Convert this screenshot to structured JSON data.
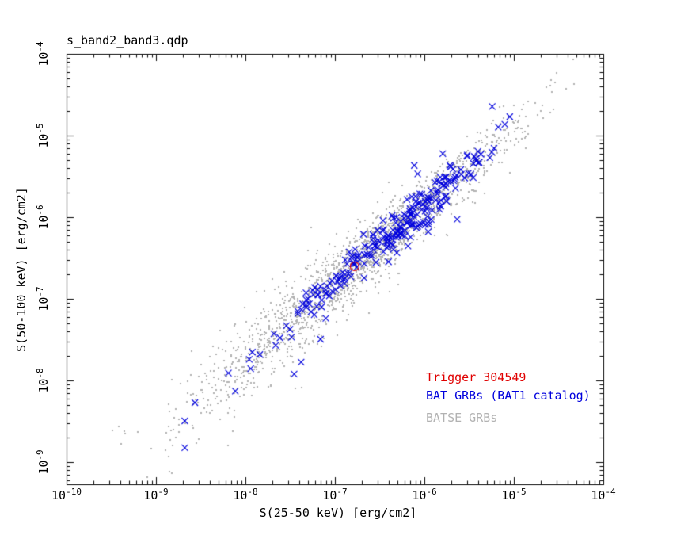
{
  "page": {
    "background": "#ffffff"
  },
  "plot": {
    "title": "s_band2_band3.qdp",
    "x_axis": {
      "label": "S(25-50 keV) [erg/cm2]",
      "scale": "log",
      "tick_base": "10",
      "tick_exponents": [
        -10,
        -9,
        -8,
        -7,
        -6,
        -5,
        -4
      ]
    },
    "y_axis": {
      "label": "S(50-100 keV) [erg/cm2]",
      "scale": "log",
      "tick_base": "10",
      "tick_exponents": [
        -4,
        -5,
        -6,
        -7,
        -8,
        -9
      ]
    },
    "legend": [
      {
        "label": "Trigger 304549",
        "color": "#e00000"
      },
      {
        "label": "BAT GRBs (BAT1 catalog)",
        "color": "#0000dd"
      },
      {
        "label": "BATSE GRBs",
        "color": "#b2b2b2"
      }
    ]
  },
  "chart_data": {
    "type": "scatter",
    "title": "s_band2_band3.qdp",
    "xlabel": "S(25-50 keV) [erg/cm2]",
    "ylabel": "S(50-100 keV) [erg/cm2]",
    "xscale": "log",
    "yscale": "log",
    "xlim": [
      1e-10,
      0.0001
    ],
    "ylim": [
      5.3e-10,
      0.0001
    ],
    "grid": false,
    "legend_position": "lower-right",
    "series": [
      {
        "name": "BATSE GRBs",
        "marker": "dot",
        "color": "#b2b2b2",
        "count": 1850,
        "generator": {
          "seed": 101,
          "logx_mean": -6.65,
          "logx_sigma_left": 1.0,
          "logx_sigma_right": 0.8,
          "logx_range": [
            -9.55,
            -4.3
          ],
          "relation_slope": 0.94,
          "relation_intercept": -0.225,
          "scatter_base": 0.17,
          "scatter_slope": 0.06,
          "scatter_knee": -6.2,
          "outlier_fraction": 0.05,
          "outlier_scale": 2.0
        }
      },
      {
        "name": "BAT GRBs (BAT1 catalog)",
        "marker": "x",
        "color": "#0000dd",
        "count": 248,
        "generator": {
          "seed": 55,
          "logx_mean": -6.3,
          "logx_sigma_left": 0.8,
          "logx_sigma_right": 0.55,
          "logx_range": [
            -8.8,
            -4.95
          ],
          "relation_slope": 0.955,
          "relation_intercept": -0.135,
          "scatter_base": 0.115,
          "scatter_slope": 0,
          "scatter_knee": -99,
          "outlier_fraction": 0.07,
          "outlier_scale": 2.6
        },
        "points": [
          [
            9e-06,
            1.7e-05
          ],
          [
            2.1e-09,
            3.2e-09
          ],
          [
            2.1e-09,
            1.5e-09
          ],
          [
            3.5e-08,
            1.2e-08
          ],
          [
            6.9e-08,
            3.2e-08
          ]
        ]
      },
      {
        "name": "Trigger 304549",
        "marker": "circle-open",
        "color": "#e00000",
        "points": [
          [
            1.66e-07,
            2.5e-07
          ]
        ]
      }
    ]
  }
}
